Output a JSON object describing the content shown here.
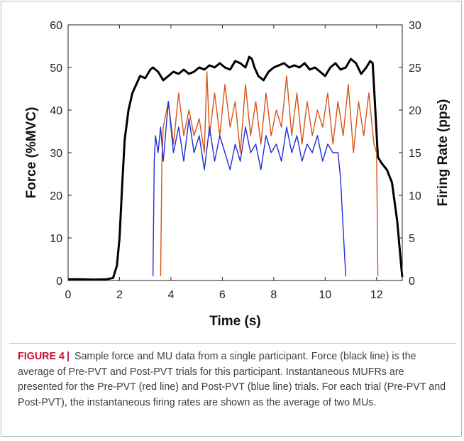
{
  "chart_data": {
    "type": "line",
    "xlabel": "Time (s)",
    "ylabel_left": "Force (%MVC)",
    "ylabel_right": "Firing Rate (pps)",
    "xlim": [
      0,
      13
    ],
    "ylim_left": [
      0,
      60
    ],
    "ylim_right": [
      0,
      30
    ],
    "x_ticks": [
      0,
      2,
      4,
      6,
      8,
      10,
      12
    ],
    "y_left_ticks": [
      0,
      10,
      20,
      30,
      40,
      50,
      60
    ],
    "y_right_ticks": [
      0,
      5,
      10,
      15,
      20,
      25,
      30
    ],
    "grid": false,
    "legend": "none",
    "series": [
      {
        "key": "force",
        "axis": "left",
        "color": "#000000",
        "x": [
          0,
          0.5,
          1.0,
          1.5,
          1.75,
          1.9,
          2.0,
          2.1,
          2.2,
          2.35,
          2.5,
          2.65,
          2.8,
          3.0,
          3.2,
          3.3,
          3.5,
          3.7,
          3.9,
          4.1,
          4.3,
          4.5,
          4.7,
          4.9,
          5.1,
          5.3,
          5.5,
          5.7,
          5.9,
          6.1,
          6.3,
          6.5,
          6.7,
          6.9,
          7.05,
          7.15,
          7.25,
          7.4,
          7.6,
          7.8,
          8.0,
          8.2,
          8.4,
          8.6,
          8.8,
          9.0,
          9.2,
          9.4,
          9.6,
          9.8,
          10.0,
          10.2,
          10.4,
          10.6,
          10.8,
          11.0,
          11.2,
          11.4,
          11.6,
          11.75,
          11.85,
          11.95,
          12.05,
          12.2,
          12.4,
          12.6,
          12.8,
          12.95,
          13.0
        ],
        "y": [
          0.3,
          0.3,
          0.2,
          0.3,
          0.6,
          3.5,
          10,
          22,
          33,
          40,
          44,
          46,
          48,
          47.5,
          49.5,
          50,
          49,
          47,
          48,
          49,
          48.5,
          49.5,
          48.5,
          49,
          50,
          49.5,
          50.5,
          50,
          51,
          50,
          49.5,
          51.5,
          51,
          50,
          52.5,
          52,
          50,
          48,
          47,
          49,
          50,
          50.5,
          51,
          50,
          50.5,
          50,
          51,
          49.5,
          50,
          49,
          48,
          50,
          51,
          49.5,
          50,
          52,
          51,
          48.5,
          50,
          51.5,
          51,
          40,
          29,
          27.5,
          26,
          23,
          14,
          4,
          0.8
        ]
      },
      {
        "key": "pre_pvt_red",
        "axis": "right",
        "color": "#d95319",
        "x": [
          3.6,
          3.65,
          3.7,
          3.9,
          4.1,
          4.3,
          4.5,
          4.7,
          4.9,
          5.1,
          5.3,
          5.4,
          5.5,
          5.7,
          5.9,
          6.1,
          6.3,
          6.5,
          6.7,
          6.9,
          7.1,
          7.3,
          7.5,
          7.7,
          7.9,
          8.1,
          8.3,
          8.5,
          8.7,
          8.9,
          9.1,
          9.3,
          9.5,
          9.7,
          9.9,
          10.1,
          10.3,
          10.5,
          10.7,
          10.9,
          11.1,
          11.3,
          11.5,
          11.7,
          11.9,
          12.0,
          12.05
        ],
        "y": [
          0.5,
          14,
          18,
          21,
          16,
          22,
          17,
          20,
          17,
          19,
          15,
          24.5,
          17,
          22,
          17,
          23,
          18,
          21,
          15,
          23,
          17,
          21,
          16,
          22,
          17,
          20,
          18,
          24,
          17,
          22,
          16,
          21,
          17,
          20,
          18,
          22,
          16,
          21,
          17,
          23,
          15,
          21,
          17,
          22,
          16,
          15,
          0.5
        ]
      },
      {
        "key": "post_pvt_blue",
        "axis": "right",
        "color": "#1f2fd6",
        "x": [
          3.3,
          3.35,
          3.4,
          3.5,
          3.6,
          3.7,
          3.9,
          4.1,
          4.3,
          4.5,
          4.7,
          4.9,
          5.1,
          5.3,
          5.5,
          5.7,
          5.9,
          6.1,
          6.3,
          6.5,
          6.7,
          6.9,
          7.1,
          7.3,
          7.5,
          7.7,
          7.9,
          8.1,
          8.3,
          8.5,
          8.7,
          8.9,
          9.1,
          9.3,
          9.5,
          9.7,
          9.9,
          10.1,
          10.3,
          10.5,
          10.6,
          10.7,
          10.8
        ],
        "y": [
          0.5,
          14,
          17,
          15,
          18,
          14,
          21,
          15,
          18,
          14,
          19,
          15,
          17,
          13,
          18,
          14,
          17,
          15,
          13,
          16,
          14,
          18,
          15,
          16,
          13,
          17,
          15,
          16,
          14,
          18,
          15,
          17,
          14,
          16,
          15,
          17,
          14,
          16,
          15,
          15,
          12,
          6,
          0.5
        ]
      }
    ]
  },
  "caption": {
    "label": "FIGURE 4",
    "separator": "|",
    "text": "Sample force and MU data from a single participant. Force (black line) is the average of Pre-PVT and Post-PVT trials for this participant. Instantaneous MUFRs are presented for the Pre-PVT (red line) and Post-PVT (blue line) trials. For each trial (Pre-PVT and Post-PVT), the instantaneous firing rates are shown as the average of two MUs."
  }
}
